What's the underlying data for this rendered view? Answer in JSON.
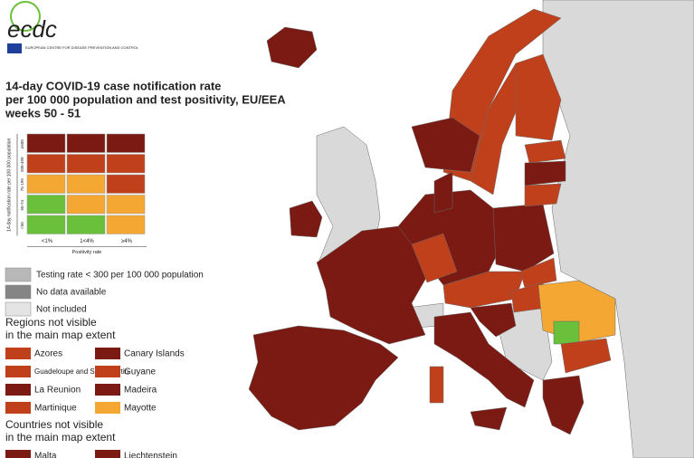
{
  "header": {
    "logo_text": "ecdc",
    "agency": "EUROPEAN CENTRE FOR DISEASE PREVENTION AND CONTROL"
  },
  "title": [
    "14-day COVID-19 case notification rate",
    "per 100 000 population and test positivity, EU/EEA",
    "weeks 50 - 51"
  ],
  "matrix": {
    "y_label": "14-day notification rate per 100 000 population",
    "x_label": "Positivity rate",
    "row_labels": [
      "≥500",
      "200-499",
      "75-199",
      "50-74",
      "<50"
    ],
    "col_labels": [
      "<1%",
      "1<4%",
      "≥4%"
    ],
    "cells": [
      [
        "#7b1a13",
        "#7b1a13",
        "#7b1a13"
      ],
      [
        "#c0401c",
        "#c0401c",
        "#c0401c"
      ],
      [
        "#f5a733",
        "#f5a733",
        "#c0401c"
      ],
      [
        "#6abf3b",
        "#f5a733",
        "#f5a733"
      ],
      [
        "#6abf3b",
        "#6abf3b",
        "#f5a733"
      ]
    ]
  },
  "legend": [
    {
      "label": "Testing rate < 300 per 100 000 population",
      "color": "#b8b8b8"
    },
    {
      "label": "No data available",
      "color": "#858585"
    },
    {
      "label": "Not included",
      "color": "#e4e4e4"
    }
  ],
  "regions": {
    "heading": [
      "Regions not visible",
      "in the main map extent"
    ],
    "items": [
      {
        "label": "Azores",
        "color": "#c0401c"
      },
      {
        "label": "Guadeloupe and Saint Martin",
        "color": "#c0401c"
      },
      {
        "label": "La Reunion",
        "color": "#7b1a13"
      },
      {
        "label": "Martinique",
        "color": "#c0401c"
      },
      {
        "label": "Canary Islands",
        "color": "#7b1a13"
      },
      {
        "label": "Guyane",
        "color": "#c0401c"
      },
      {
        "label": "Madeira",
        "color": "#7b1a13"
      },
      {
        "label": "Mayotte",
        "color": "#f5a733"
      }
    ]
  },
  "countries": {
    "heading": [
      "Countries not visible",
      "in the main map extent"
    ],
    "items": [
      {
        "label": "Malta",
        "color": "#7b1a13"
      },
      {
        "label": "Liechtenstein",
        "color": "#7b1a13"
      }
    ]
  }
}
